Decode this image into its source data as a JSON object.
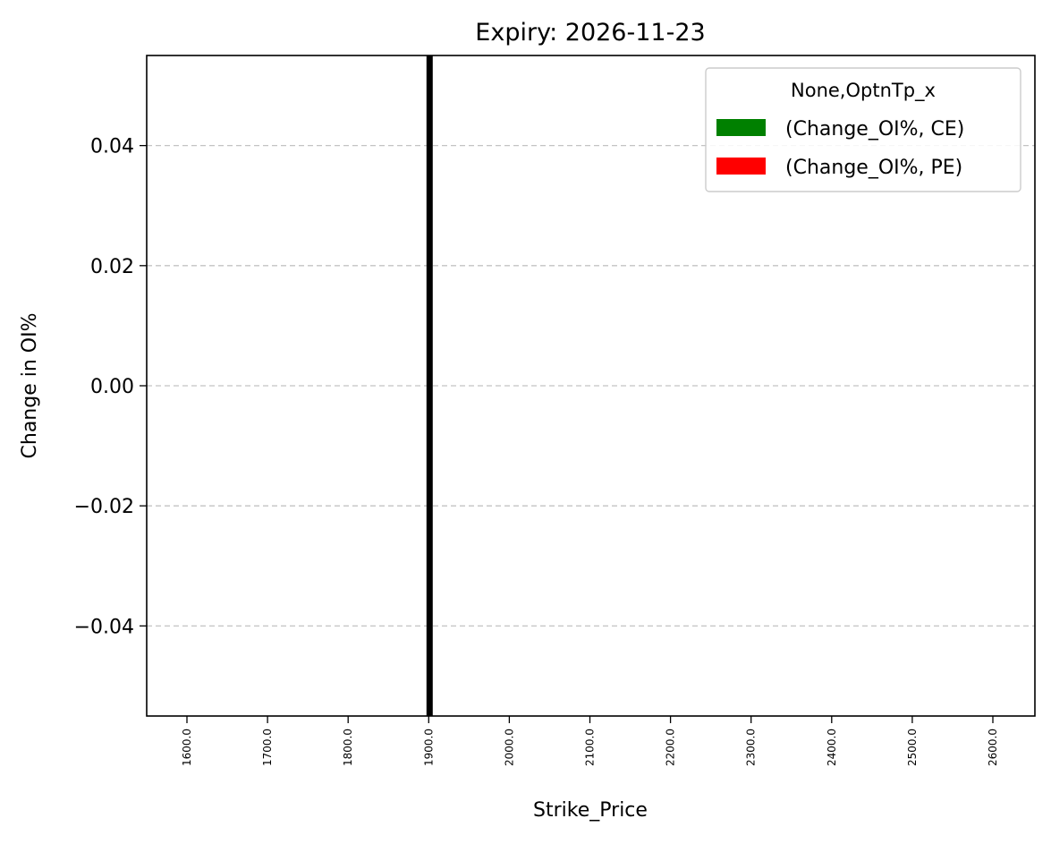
{
  "chart_data": {
    "type": "bar",
    "title": "Expiry: 2026-11-23",
    "xlabel": "Strike_Price",
    "ylabel": "Change in OI%",
    "categories": [
      "1600.0",
      "1700.0",
      "1800.0",
      "1900.0",
      "2000.0",
      "2100.0",
      "2200.0",
      "2300.0",
      "2400.0",
      "2500.0",
      "2600.0"
    ],
    "series": [
      {
        "name": "(Change_OI%, CE)",
        "color": "#008000",
        "values": [
          0,
          0,
          0,
          0,
          0,
          0,
          0,
          0,
          0,
          0,
          0
        ]
      },
      {
        "name": "(Change_OI%, PE)",
        "color": "#ff0000",
        "values": [
          0,
          0,
          0,
          0,
          0,
          0,
          0,
          0,
          0,
          0,
          0
        ]
      }
    ],
    "ylim": [
      -0.055,
      0.055
    ],
    "yticks": [
      -0.04,
      -0.02,
      0.0,
      0.02,
      0.04
    ],
    "ytick_labels": [
      "−0.04",
      "−0.02",
      "0.00",
      "0.02",
      "0.04"
    ],
    "grid": "y-dashed",
    "legend": {
      "title": "None,OptnTp_x",
      "position": "top-right"
    },
    "marker_line": {
      "x": "1900.0",
      "color": "#000000"
    }
  }
}
